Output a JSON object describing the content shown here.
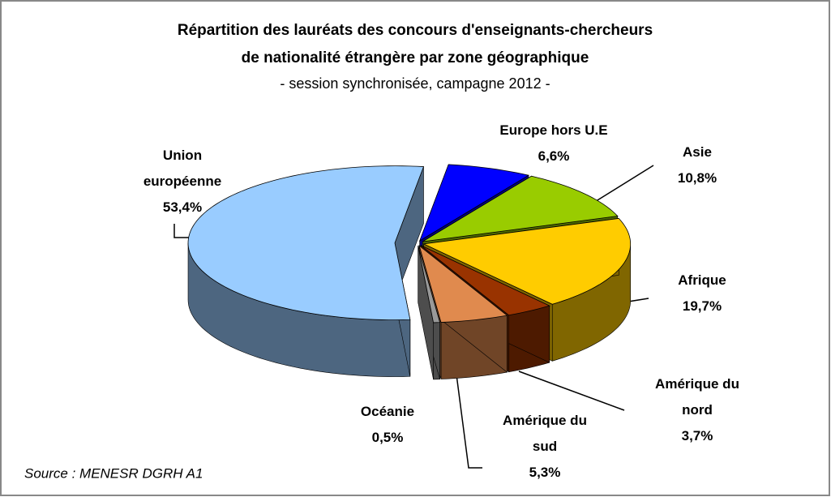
{
  "chart_data": {
    "type": "pie3d",
    "title": [
      "Répartition des lauréats des concours d'enseignants-chercheurs",
      "de nationalité étrangère par zone géographique"
    ],
    "subtitle": "- session synchronisée, campagne 2012 -",
    "categories": [
      "Europe hors U.E",
      "Asie",
      "Afrique",
      "Amérique du nord",
      "Amérique du sud",
      "Océanie",
      "Union européenne"
    ],
    "values": [
      6.6,
      10.8,
      19.7,
      3.7,
      5.3,
      0.5,
      53.4
    ],
    "value_labels": [
      "6,6%",
      "10,8%",
      "19,7%",
      "3,7%",
      "5,3%",
      "0,5%",
      "53,4%"
    ],
    "colors": [
      "#0000ff",
      "#99cc00",
      "#ffcc00",
      "#993300",
      "#e08a4e",
      "#999999",
      "#99ccff"
    ],
    "source": "Source : MENESR DGRH A1"
  }
}
